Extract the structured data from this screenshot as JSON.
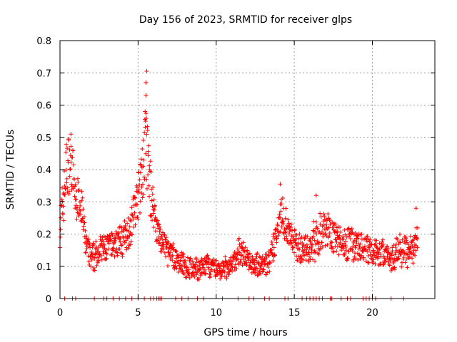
{
  "chart_data": {
    "type": "scatter",
    "title": "Day 156 of 2023, SRMTID for receiver glps",
    "xlabel": "GPS time / hours",
    "ylabel": "SRMTID / TECUs",
    "xlim": [
      0,
      24
    ],
    "ylim": [
      0,
      0.8
    ],
    "xticks": [
      0,
      5,
      10,
      15,
      20
    ],
    "xtick_labels": [
      "0",
      "5",
      "10",
      "15",
      "20"
    ],
    "yticks": [
      0,
      0.1,
      0.2,
      0.3,
      0.4,
      0.5,
      0.6,
      0.7,
      0.8
    ],
    "ytick_labels": [
      "0",
      "0.1",
      "0.2",
      "0.3",
      "0.4",
      "0.5",
      "0.6",
      "0.7",
      "0.8"
    ],
    "grid": true,
    "marker": "+",
    "color": "#ff0000",
    "series": [
      {
        "name": "SRMTID",
        "envelope": {
          "x": [
            0.0,
            0.2,
            0.4,
            0.6,
            0.8,
            1.0,
            1.2,
            1.4,
            1.6,
            1.8,
            2.0,
            2.2,
            2.5,
            3.0,
            3.5,
            4.0,
            4.3,
            4.6,
            4.9,
            5.1,
            5.3,
            5.5,
            5.7,
            5.9,
            6.1,
            6.3,
            6.6,
            7.0,
            7.5,
            8.0,
            8.5,
            9.0,
            9.5,
            10.0,
            10.5,
            11.0,
            11.3,
            11.6,
            12.0,
            12.5,
            13.0,
            13.5,
            13.8,
            14.0,
            14.2,
            14.5,
            15.0,
            15.5,
            16.0,
            16.3,
            16.6,
            17.0,
            17.3,
            17.6,
            18.0,
            18.5,
            19.0,
            19.5,
            20.0,
            20.5,
            21.0,
            21.3,
            21.6,
            22.0,
            22.3,
            22.6,
            22.9
          ],
          "y": [
            0.22,
            0.3,
            0.4,
            0.42,
            0.4,
            0.3,
            0.32,
            0.28,
            0.18,
            0.15,
            0.12,
            0.13,
            0.15,
            0.16,
            0.17,
            0.18,
            0.2,
            0.24,
            0.3,
            0.34,
            0.4,
            0.48,
            0.38,
            0.3,
            0.25,
            0.2,
            0.17,
            0.14,
            0.12,
            0.1,
            0.09,
            0.09,
            0.1,
            0.09,
            0.09,
            0.1,
            0.13,
            0.15,
            0.12,
            0.11,
            0.1,
            0.12,
            0.18,
            0.25,
            0.27,
            0.22,
            0.17,
            0.15,
            0.16,
            0.18,
            0.2,
            0.22,
            0.21,
            0.19,
            0.18,
            0.17,
            0.16,
            0.15,
            0.15,
            0.14,
            0.14,
            0.12,
            0.15,
            0.16,
            0.14,
            0.15,
            0.2
          ],
          "spread": [
            0.07,
            0.08,
            0.09,
            0.09,
            0.08,
            0.06,
            0.06,
            0.06,
            0.05,
            0.04,
            0.04,
            0.04,
            0.04,
            0.04,
            0.04,
            0.05,
            0.05,
            0.06,
            0.06,
            0.07,
            0.1,
            0.12,
            0.1,
            0.07,
            0.06,
            0.05,
            0.04,
            0.04,
            0.03,
            0.03,
            0.03,
            0.03,
            0.03,
            0.03,
            0.03,
            0.03,
            0.04,
            0.04,
            0.03,
            0.03,
            0.03,
            0.04,
            0.05,
            0.06,
            0.06,
            0.05,
            0.04,
            0.04,
            0.05,
            0.06,
            0.06,
            0.06,
            0.05,
            0.05,
            0.05,
            0.05,
            0.05,
            0.04,
            0.04,
            0.04,
            0.04,
            0.04,
            0.05,
            0.05,
            0.04,
            0.04,
            0.05
          ]
        },
        "peaks": [
          {
            "x": 0.7,
            "y": 0.51
          },
          {
            "x": 5.55,
            "y": 0.705
          },
          {
            "x": 5.5,
            "y": 0.67
          },
          {
            "x": 5.5,
            "y": 0.63
          },
          {
            "x": 5.45,
            "y": 0.58
          },
          {
            "x": 14.1,
            "y": 0.355
          },
          {
            "x": 16.4,
            "y": 0.32
          },
          {
            "x": 22.8,
            "y": 0.28
          }
        ],
        "zero_x": [
          0.3,
          0.8,
          1.0,
          2.2,
          2.8,
          3.0,
          3.4,
          3.8,
          4.2,
          4.6,
          5.0,
          5.4,
          5.8,
          6.0,
          6.2,
          6.3,
          6.4,
          6.5,
          7.4,
          7.8,
          8.2,
          8.8,
          9.2,
          10.4,
          11.4,
          12.1,
          12.4,
          13.1,
          13.4,
          14.4,
          14.6,
          15.5,
          15.8,
          16.0,
          16.2,
          16.4,
          16.6,
          16.8,
          17.3,
          17.4,
          18.0,
          18.4,
          18.6,
          19.4,
          19.6,
          19.8,
          20.0,
          20.2,
          21.2,
          22.0
        ]
      }
    ]
  }
}
